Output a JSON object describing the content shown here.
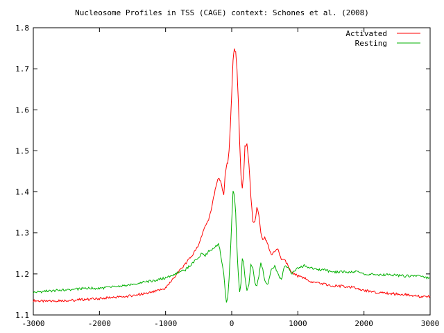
{
  "chart_data": {
    "type": "line",
    "title": "Nucleosome Profiles in TSS (CAGE) context: Schones et al. (2008)",
    "xlabel": "",
    "ylabel": "",
    "xlim": [
      -3000,
      3000
    ],
    "ylim": [
      1.1,
      1.8
    ],
    "xticks": [
      -3000,
      -2000,
      -1000,
      0,
      1000,
      2000,
      3000
    ],
    "yticks": [
      1.1,
      1.2,
      1.3,
      1.4,
      1.5,
      1.6,
      1.7,
      1.8
    ],
    "ytick_labels": [
      "1.1",
      "1.2",
      "1.3",
      "1.4",
      "1.5",
      "1.6",
      "1.7",
      "1.8"
    ],
    "legend_position": "top-right",
    "grid": false,
    "series": [
      {
        "name": "Activated",
        "color": "#ff0000",
        "x": [
          -3000,
          -2800,
          -2600,
          -2400,
          -2200,
          -2000,
          -1800,
          -1600,
          -1400,
          -1200,
          -1000,
          -900,
          -800,
          -700,
          -600,
          -500,
          -450,
          -400,
          -350,
          -300,
          -250,
          -200,
          -180,
          -160,
          -140,
          -120,
          -100,
          -80,
          -60,
          -40,
          -20,
          0,
          20,
          40,
          60,
          80,
          100,
          120,
          140,
          160,
          180,
          200,
          230,
          260,
          290,
          320,
          350,
          380,
          410,
          440,
          470,
          500,
          550,
          600,
          650,
          700,
          750,
          800,
          850,
          900,
          1000,
          1100,
          1200,
          1300,
          1400,
          1500,
          1600,
          1700,
          1800,
          1900,
          2000,
          2200,
          2400,
          2600,
          2800,
          3000
        ],
        "y": [
          1.135,
          1.133,
          1.135,
          1.136,
          1.138,
          1.14,
          1.143,
          1.145,
          1.15,
          1.155,
          1.165,
          1.185,
          1.205,
          1.225,
          1.245,
          1.27,
          1.295,
          1.315,
          1.33,
          1.365,
          1.405,
          1.435,
          1.43,
          1.42,
          1.405,
          1.395,
          1.44,
          1.465,
          1.47,
          1.5,
          1.56,
          1.64,
          1.72,
          1.75,
          1.74,
          1.7,
          1.62,
          1.52,
          1.44,
          1.41,
          1.44,
          1.51,
          1.515,
          1.47,
          1.39,
          1.33,
          1.325,
          1.36,
          1.345,
          1.3,
          1.285,
          1.29,
          1.27,
          1.245,
          1.255,
          1.26,
          1.235,
          1.235,
          1.22,
          1.205,
          1.195,
          1.19,
          1.18,
          1.178,
          1.175,
          1.172,
          1.17,
          1.17,
          1.168,
          1.165,
          1.16,
          1.155,
          1.152,
          1.15,
          1.145,
          1.145
        ]
      },
      {
        "name": "Resting",
        "color": "#00b000",
        "x": [
          -3000,
          -2800,
          -2600,
          -2400,
          -2200,
          -2000,
          -1800,
          -1600,
          -1400,
          -1200,
          -1000,
          -900,
          -800,
          -700,
          -600,
          -500,
          -450,
          -400,
          -350,
          -300,
          -250,
          -200,
          -180,
          -160,
          -140,
          -120,
          -100,
          -80,
          -60,
          -40,
          -20,
          0,
          20,
          40,
          60,
          80,
          100,
          120,
          140,
          160,
          180,
          200,
          230,
          260,
          290,
          320,
          350,
          380,
          410,
          440,
          470,
          500,
          550,
          600,
          650,
          700,
          750,
          800,
          850,
          900,
          1000,
          1100,
          1200,
          1300,
          1400,
          1500,
          1600,
          1700,
          1800,
          1900,
          2000,
          2200,
          2400,
          2600,
          2800,
          3000
        ],
        "y": [
          1.155,
          1.158,
          1.16,
          1.162,
          1.165,
          1.165,
          1.168,
          1.172,
          1.178,
          1.183,
          1.19,
          1.195,
          1.205,
          1.21,
          1.225,
          1.24,
          1.25,
          1.245,
          1.255,
          1.26,
          1.265,
          1.275,
          1.26,
          1.24,
          1.22,
          1.2,
          1.16,
          1.13,
          1.145,
          1.19,
          1.25,
          1.33,
          1.4,
          1.39,
          1.35,
          1.26,
          1.2,
          1.155,
          1.175,
          1.24,
          1.23,
          1.19,
          1.16,
          1.175,
          1.225,
          1.215,
          1.18,
          1.17,
          1.195,
          1.225,
          1.21,
          1.185,
          1.175,
          1.21,
          1.22,
          1.2,
          1.185,
          1.22,
          1.215,
          1.2,
          1.215,
          1.22,
          1.215,
          1.21,
          1.21,
          1.205,
          1.205,
          1.205,
          1.205,
          1.205,
          1.2,
          1.198,
          1.198,
          1.195,
          1.195,
          1.19
        ]
      }
    ]
  }
}
